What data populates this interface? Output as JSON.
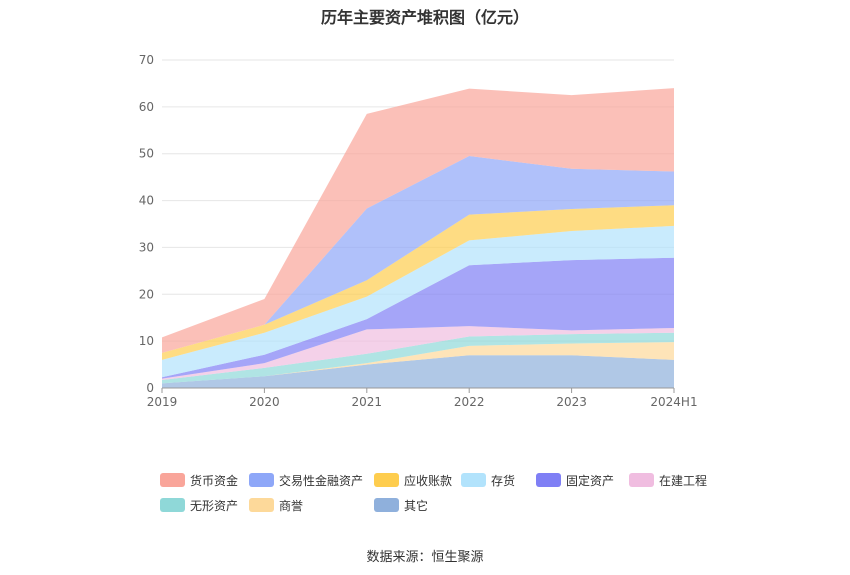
{
  "chart_data": {
    "type": "area",
    "stacked": true,
    "title": "历年主要资产堆积图（亿元）",
    "categories": [
      "2019",
      "2020",
      "2021",
      "2022",
      "2023",
      "2024H1"
    ],
    "ylim": [
      0,
      70
    ],
    "yticks": [
      0,
      10,
      20,
      30,
      40,
      50,
      60,
      70
    ],
    "grid": true,
    "legend_position": "bottom",
    "series": [
      {
        "name": "其它",
        "color": "#8fb0dc",
        "values": [
          1.0,
          2.5,
          5.0,
          7.0,
          7.0,
          6.0
        ]
      },
      {
        "name": "商誉",
        "color": "#fdd99a",
        "values": [
          0.0,
          0.0,
          0.3,
          2.0,
          2.5,
          3.8
        ]
      },
      {
        "name": "无形资产",
        "color": "#8fd8d8",
        "values": [
          0.7,
          1.8,
          2.0,
          2.0,
          2.0,
          2.0
        ]
      },
      {
        "name": "在建工程",
        "color": "#f0bde0",
        "values": [
          0.3,
          1.0,
          5.2,
          2.2,
          0.8,
          1.0
        ]
      },
      {
        "name": "固定资产",
        "color": "#7f7ff5",
        "values": [
          0.3,
          1.8,
          2.2,
          13.0,
          15.0,
          15.0
        ]
      },
      {
        "name": "存货",
        "color": "#b2e3fc",
        "values": [
          3.7,
          4.7,
          4.8,
          5.3,
          6.2,
          6.8
        ]
      },
      {
        "name": "应收账款",
        "color": "#fecd4e",
        "values": [
          1.5,
          1.7,
          3.5,
          5.5,
          4.7,
          4.4
        ]
      },
      {
        "name": "交易性金融资产",
        "color": "#8ea7f8",
        "values": [
          0.0,
          0.0,
          15.3,
          12.5,
          8.6,
          7.2
        ]
      },
      {
        "name": "货币资金",
        "color": "#f9a59a",
        "values": [
          3.3,
          5.5,
          20.2,
          14.4,
          15.7,
          17.8
        ]
      }
    ],
    "legend_order": [
      "货币资金",
      "交易性金融资产",
      "应收账款",
      "存货",
      "固定资产",
      "在建工程",
      "无形资产",
      "商誉",
      "其它"
    ]
  },
  "source_text": "数据来源：恒生聚源"
}
